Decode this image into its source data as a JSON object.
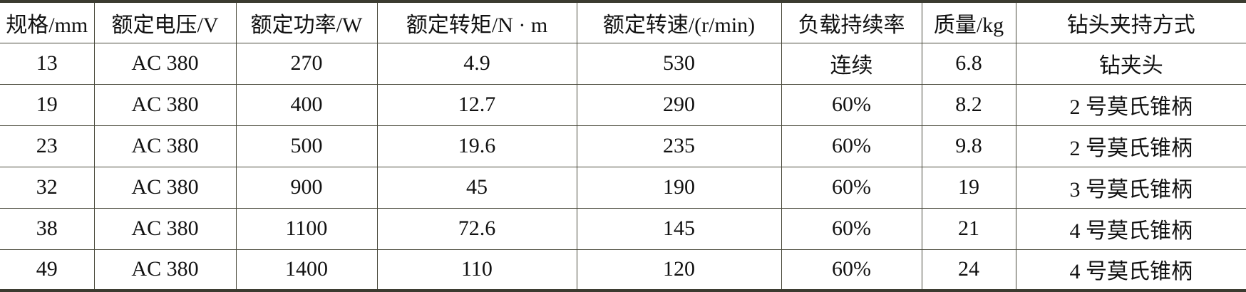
{
  "table": {
    "headers": [
      "规格/mm",
      "额定电压/V",
      "额定功率/W",
      "额定转矩/N · m",
      "额定转速/(r/min)",
      "负载持续率",
      "质量/kg",
      "钻头夹持方式"
    ],
    "rows": [
      [
        "13",
        "AC 380",
        "270",
        "4.9",
        "530",
        "连续",
        "6.8",
        "钻夹头"
      ],
      [
        "19",
        "AC 380",
        "400",
        "12.7",
        "290",
        "60%",
        "8.2",
        "2 号莫氏锥柄"
      ],
      [
        "23",
        "AC 380",
        "500",
        "19.6",
        "235",
        "60%",
        "9.8",
        "2 号莫氏锥柄"
      ],
      [
        "32",
        "AC 380",
        "900",
        "45",
        "190",
        "60%",
        "19",
        "3 号莫氏锥柄"
      ],
      [
        "38",
        "AC 380",
        "1100",
        "72.6",
        "145",
        "60%",
        "21",
        "4 号莫氏锥柄"
      ],
      [
        "49",
        "AC 380",
        "1400",
        "110",
        "120",
        "60%",
        "24",
        "4 号莫氏锥柄"
      ]
    ]
  }
}
